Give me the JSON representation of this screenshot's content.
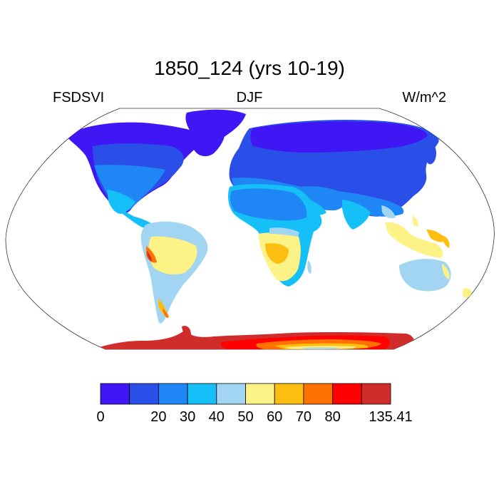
{
  "figure": {
    "title": "1850_124 (yrs 10-19)",
    "left_label": "FSDSVI",
    "center_label": "DJF",
    "right_label": "W/m^2"
  },
  "colorbar": {
    "colors": [
      "#3f17f5",
      "#2a4fe8",
      "#1f87f5",
      "#15bff7",
      "#a1d5f1",
      "#fdf286",
      "#fdbe12",
      "#fe7102",
      "#fe0100",
      "#d12c2c"
    ],
    "labels": [
      {
        "text": "0",
        "boundary": 0
      },
      {
        "text": "20",
        "boundary": 2
      },
      {
        "text": "30",
        "boundary": 3
      },
      {
        "text": "40",
        "boundary": 4
      },
      {
        "text": "50",
        "boundary": 5
      },
      {
        "text": "60",
        "boundary": 6
      },
      {
        "text": "70",
        "boundary": 7
      },
      {
        "text": "80",
        "boundary": 8
      },
      {
        "text": "135.41",
        "boundary": 10
      }
    ]
  }
}
